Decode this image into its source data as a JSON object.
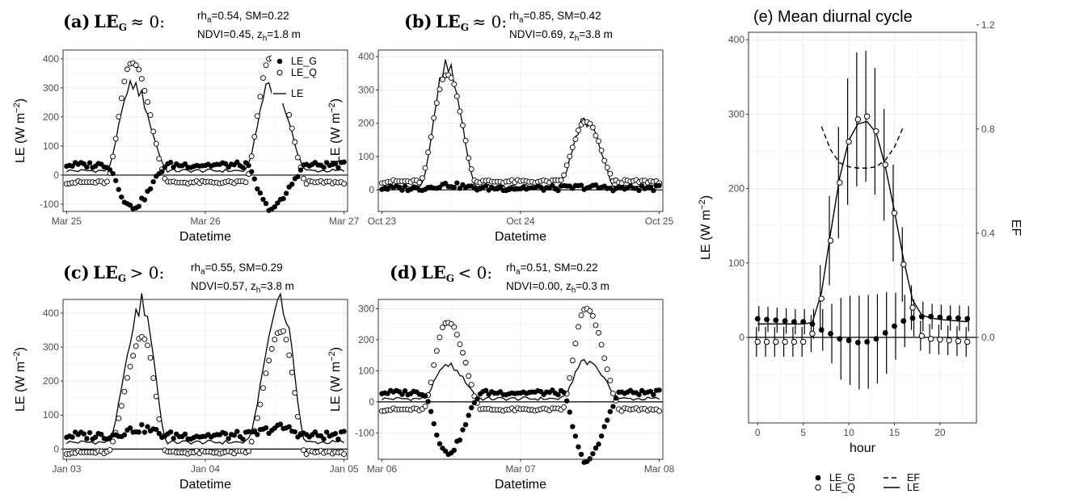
{
  "panels": {
    "a": {
      "label": "(a)",
      "lhs": "LE",
      "sub": "G",
      "relation": "≈ 0:",
      "stats": {
        "rh": "0.54",
        "sm": "0.22",
        "ndvi": "0.45",
        "zh": "1.8 m"
      }
    },
    "b": {
      "label": "(b)",
      "lhs": "LE",
      "sub": "G",
      "relation": "≈ 0:",
      "stats": {
        "rh": "0.85",
        "sm": "0.42",
        "ndvi": "0.69",
        "zh": "3.8 m"
      }
    },
    "c": {
      "label": "(c)",
      "lhs": "LE",
      "sub": "G",
      "relation": "> 0:",
      "stats": {
        "rh": "0.55",
        "sm": "0.29",
        "ndvi": "0.57",
        "zh": "3.8 m"
      }
    },
    "d": {
      "label": "(d)",
      "lhs": "LE",
      "sub": "G",
      "relation": "< 0:",
      "stats": {
        "rh": "0.51",
        "sm": "0.22",
        "ndvi": "0.00",
        "zh": "0.3 m"
      }
    },
    "e": {
      "title": "(e) Mean diurnal cycle"
    }
  },
  "labels": {
    "stat_rh": "rh",
    "stat_rh_sub": "a",
    "stat_sm": "SM",
    "stat_ndvi": "NDVI",
    "stat_zh": "z",
    "stat_zh_sub": "h"
  },
  "legend": {
    "le_g": "LE_G",
    "le_q": "LE_Q",
    "le": "LE",
    "ef": "EF"
  },
  "colors": {
    "line": "#000000",
    "grid_major": "#ebebeb",
    "grid_minor": "#f5f5f5",
    "frame": "#333333"
  },
  "chart_data": [
    {
      "id": "a",
      "type": "scatter",
      "xlabel": "Datetime",
      "ylabel": "LE (W m-2)",
      "x_ticks": [
        "Mar 25",
        "Mar 26",
        "Mar 27"
      ],
      "x_range_days": [
        0,
        2
      ],
      "ylim": [
        -125,
        430
      ],
      "y_ticks": [
        -100,
        0,
        100,
        200,
        300,
        400
      ],
      "legend": [
        "LE_G",
        "LE_Q",
        "LE"
      ],
      "legend_position": "top-right inside",
      "diurnal": {
        "le_g": {
          "night": 35,
          "day": -110,
          "night_noise": 10
        },
        "le_q": {
          "night": -25,
          "day": 390
        },
        "le": {
          "night": 15,
          "day": 300
        },
        "day_start": 0.29,
        "day_end": 0.73,
        "peak": 0.47,
        "day2_peak_scale": [
          1.0,
          1.03
        ]
      }
    },
    {
      "id": "b",
      "type": "scatter",
      "xlabel": "Datetime",
      "ylabel": "LE (W m-2)",
      "x_ticks": [
        "Oct 23",
        "Oct 24",
        "Oct 25"
      ],
      "x_range_days": [
        0,
        2
      ],
      "ylim": [
        -65,
        420
      ],
      "y_ticks": [
        0,
        100,
        200,
        300,
        400
      ],
      "diurnal": {
        "le_g": {
          "night": 5,
          "day": 15,
          "night_noise": 8
        },
        "le_q": {
          "night": 25,
          "day": 350
        },
        "le": {
          "night": 10,
          "day": 360
        },
        "day_start": 0.28,
        "day_end": 0.68,
        "peak": 0.47,
        "day2_peak_scale": [
          1.0,
          0.58
        ]
      }
    },
    {
      "id": "c",
      "type": "scatter",
      "xlabel": "Datetime",
      "ylabel": "LE (W m-2)",
      "x_ticks": [
        "Jan 03",
        "Jan 04",
        "Jan 05"
      ],
      "x_range_days": [
        0,
        2
      ],
      "ylim": [
        -30,
        440
      ],
      "y_ticks": [
        0,
        100,
        200,
        300,
        400
      ],
      "diurnal": {
        "le_g": {
          "night": 40,
          "day": 60,
          "night_noise": 12
        },
        "le_q": {
          "night": -10,
          "day": 330
        },
        "le": {
          "night": 20,
          "day": 410
        },
        "day_start": 0.3,
        "day_end": 0.72,
        "peak": 0.55,
        "day2_peak_scale": [
          1.0,
          1.05
        ]
      }
    },
    {
      "id": "d",
      "type": "scatter",
      "xlabel": "Datetime",
      "ylabel": "LE (W m-2)",
      "x_ticks": [
        "Mar 06",
        "Mar 07",
        "Mar 08"
      ],
      "x_range_days": [
        0,
        2
      ],
      "ylim": [
        -185,
        330
      ],
      "y_ticks": [
        -100,
        0,
        100,
        200,
        300
      ],
      "diurnal": {
        "le_g": {
          "night": 30,
          "day": -165,
          "night_noise": 8
        },
        "le_q": {
          "night": -25,
          "day": 260
        },
        "le": {
          "night": 10,
          "day": 115
        },
        "day_start": 0.3,
        "day_end": 0.72,
        "peak": 0.47,
        "day2_peak_scale": [
          1.0,
          1.15
        ]
      }
    },
    {
      "id": "e",
      "type": "scatter",
      "title": "(e) Mean diurnal cycle",
      "xlabel": "hour",
      "ylabel": "LE (W m-2)",
      "y2label": "EF",
      "xlim": [
        -1,
        24
      ],
      "x_ticks": [
        0,
        5,
        10,
        15,
        20
      ],
      "ylim": [
        -115,
        410
      ],
      "y_ticks": [
        0,
        100,
        200,
        300,
        400
      ],
      "y2_ticks": [
        0.0,
        0.4,
        0.8,
        1.2
      ],
      "hour": [
        0,
        1,
        2,
        3,
        4,
        5,
        6,
        7,
        8,
        9,
        10,
        11,
        12,
        13,
        14,
        15,
        16,
        17,
        18,
        19,
        20,
        21,
        22,
        23
      ],
      "le_g": [
        25,
        24,
        23,
        22,
        21,
        21,
        18,
        10,
        5,
        -2,
        -4,
        -7,
        -6,
        -2,
        6,
        15,
        22,
        26,
        28,
        28,
        27,
        26,
        26,
        25
      ],
      "le_g_sd": [
        17,
        17,
        17,
        17,
        17,
        17,
        20,
        28,
        40,
        55,
        60,
        63,
        63,
        60,
        55,
        45,
        35,
        25,
        20,
        17,
        17,
        17,
        17,
        17
      ],
      "le_q": [
        -6,
        -6,
        -6,
        -6,
        -6,
        -6,
        5,
        52,
        130,
        208,
        263,
        293,
        297,
        277,
        232,
        167,
        98,
        40,
        2,
        -2,
        -3,
        -4,
        -5,
        -6
      ],
      "le_q_sd": [
        20,
        20,
        20,
        20,
        20,
        20,
        25,
        45,
        60,
        75,
        85,
        90,
        88,
        85,
        75,
        65,
        50,
        30,
        20,
        20,
        20,
        20,
        20,
        20
      ],
      "le": [
        18,
        18,
        18,
        18,
        18,
        18,
        20,
        60,
        140,
        215,
        265,
        287,
        290,
        275,
        230,
        170,
        105,
        50,
        30,
        26,
        24,
        23,
        22,
        21
      ],
      "ef": [
        null,
        null,
        null,
        null,
        null,
        null,
        null,
        0.81,
        0.72,
        0.67,
        0.655,
        0.65,
        0.65,
        0.655,
        0.68,
        0.73,
        0.81,
        null,
        null,
        null,
        null,
        null,
        null,
        null
      ],
      "legend": [
        "LE_G",
        "LE_Q",
        "EF",
        "LE"
      ],
      "legend_position": "bottom"
    }
  ]
}
